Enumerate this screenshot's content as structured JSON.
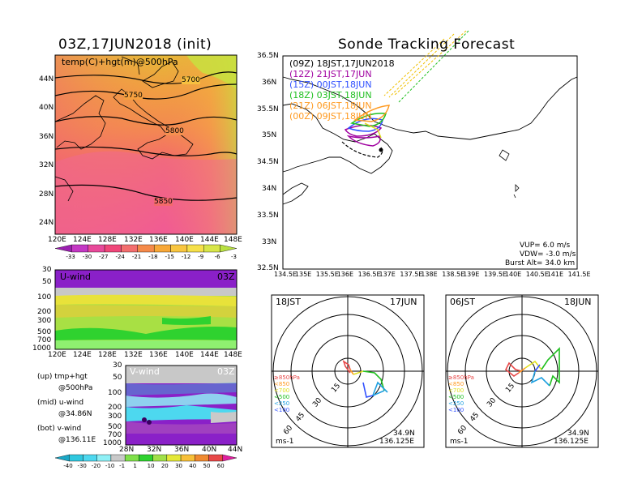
{
  "main_panel": {
    "title": "03Z,17JUN2018 (init)",
    "overlay_label": "temp(C)+hgt(m)@500hPa"
  },
  "track_panel": {
    "title": "Sonde Tracking Forecast"
  },
  "colors": {
    "temp": [
      "#9b1fb0",
      "#c438c4",
      "#e84a9a",
      "#f0477a",
      "#f36e6e",
      "#f58a4a",
      "#f8a838",
      "#f9c640",
      "#f6e04a",
      "#d8e64a",
      "#b8e040"
    ],
    "wind": [
      "#1aa7c6",
      "#2fc8df",
      "#4dd8ef",
      "#8ff0f6",
      "#c9c9c9",
      "#7fe04a",
      "#2fd22f",
      "#a0e048",
      "#e4e838",
      "#f8c038",
      "#f08a30",
      "#e84848",
      "#e020a0"
    ],
    "track_colors": [
      "#000000",
      "#a000a0",
      "#3050ff",
      "#20c020",
      "#ff9a20",
      "#ff9a20"
    ]
  },
  "colorbar_temp": {
    "labels": [
      "-33",
      "-30",
      "-27",
      "-24",
      "-21",
      "-18",
      "-15",
      "-12",
      "-9",
      "-6",
      "-3"
    ]
  },
  "colorbar_wind": {
    "labels": [
      "-40",
      "-30",
      "-20",
      "-10",
      "-1",
      "1",
      "10",
      "20",
      "30",
      "40",
      "50",
      "60"
    ]
  },
  "map_lat_labels": [
    "44N",
    "40N",
    "36N",
    "32N",
    "28N",
    "24N"
  ],
  "map_lon_labels": [
    "120E",
    "124E",
    "128E",
    "132E",
    "136E",
    "140E",
    "144E",
    "148E"
  ],
  "contour_labels": [
    "5700",
    "5750",
    "5800",
    "5850"
  ],
  "uwind": {
    "name": "U-wind",
    "time": "03Z",
    "p_labels": [
      "30",
      "50",
      "100",
      "200",
      "300",
      "500",
      "700",
      "1000"
    ],
    "lon_labels": [
      "120E",
      "124E",
      "128E",
      "132E",
      "136E",
      "140E",
      "144E",
      "148E"
    ]
  },
  "vwind": {
    "name": "V-wind",
    "time": "03Z",
    "p_labels": [
      "30",
      "50",
      "100",
      "200",
      "300",
      "500",
      "700",
      "1000"
    ],
    "lat_labels": [
      "28N",
      "32N",
      "36N",
      "40N",
      "44N"
    ]
  },
  "legend_text": {
    "up": "(up) tmp+hgt",
    "up2": "@500hPa",
    "mid": "(mid) u-wind",
    "mid2": "@34.86N",
    "bot": "(bot) v-wind",
    "bot2": "@136.11E"
  },
  "track_legend": [
    {
      "label": "(09Z)  18JST,17JUN2018",
      "color": "#000000"
    },
    {
      "label": "(12Z)  21JST,17JUN",
      "color": "#a000a0"
    },
    {
      "label": "(15Z)  00JST,18JUN",
      "color": "#3050ff"
    },
    {
      "label": "(18Z)  03JST,18JUN",
      "color": "#20c020"
    },
    {
      "label": "(21Z)  06JST,18JUN",
      "color": "#ff9a20"
    },
    {
      "label": "(00Z)  09JST,18JUN",
      "color": "#ff9a20"
    }
  ],
  "track_lat_labels": [
    "36.5N",
    "36N",
    "35.5N",
    "35N",
    "34.5N",
    "34N",
    "33.5N",
    "33N",
    "32.5N"
  ],
  "track_lon_labels": [
    "134.5E",
    "135E",
    "135.5E",
    "136E",
    "136.5E",
    "137E",
    "137.5E",
    "138E",
    "138.5E",
    "139E",
    "139.5E",
    "140E",
    "140.5E",
    "141E",
    "141.5E"
  ],
  "track_info": {
    "vup": "VUP=  6.0  m/s",
    "vdw": "VDW= -3.0  m/s",
    "burst": "Burst Alt= 34.0  km"
  },
  "hodo1": {
    "time": "18JST",
    "date": "17JUN",
    "lat": "34.9N",
    "lon": "136.125E",
    "unit": "ms-1",
    "rings": [
      "15",
      "30",
      "45",
      "60"
    ]
  },
  "hodo2": {
    "time": "06JST",
    "date": "18JUN",
    "lat": "34.9N",
    "lon": "136.125E",
    "unit": "ms-1",
    "rings": [
      "15",
      "30",
      "45",
      "60"
    ]
  },
  "hodo_legend": [
    {
      "label": "≥850hPa",
      "color": "#e84848"
    },
    {
      "label": "<850",
      "color": "#ff9a20"
    },
    {
      "label": "<700",
      "color": "#e0e020"
    },
    {
      "label": "<500",
      "color": "#20c020"
    },
    {
      "label": "<250",
      "color": "#20a0e0"
    },
    {
      "label": "<100",
      "color": "#3050ff"
    }
  ]
}
